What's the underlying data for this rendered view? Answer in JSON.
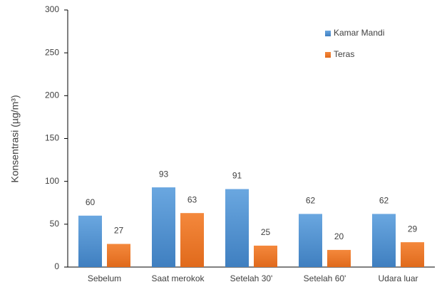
{
  "chart_data": {
    "type": "bar",
    "categories": [
      "Sebelum",
      "Saat merokok",
      "Setelah 30'",
      "Setelah 60'",
      "Udara luar"
    ],
    "series": [
      {
        "name": "Kamar Mandi",
        "color": "#5b9bd5",
        "values": [
          60,
          93,
          91,
          62,
          62
        ]
      },
      {
        "name": "Teras",
        "color": "#ed7d31",
        "values": [
          27,
          63,
          25,
          20,
          29
        ]
      }
    ],
    "y_label": "Konsentrasi (µg/m³)",
    "ylim": [
      0,
      300
    ],
    "yticks": [
      0,
      50,
      100,
      150,
      200,
      250,
      300
    ],
    "grid": false,
    "legend": "upper right"
  }
}
